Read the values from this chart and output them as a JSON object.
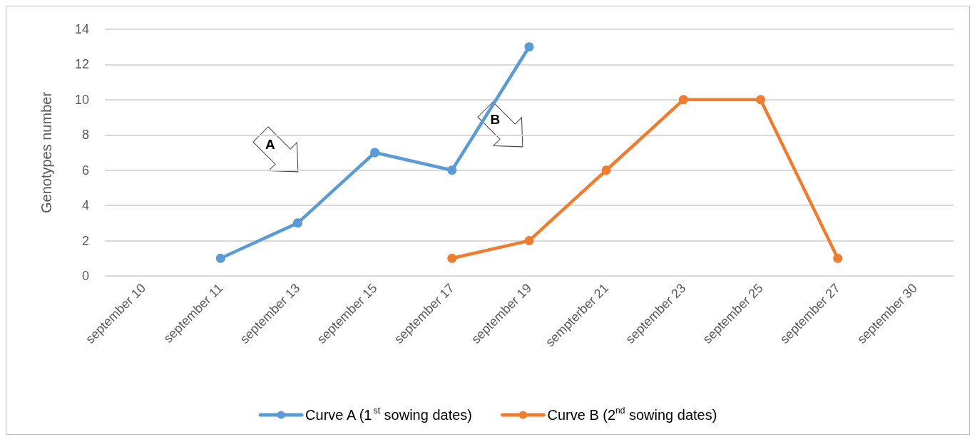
{
  "chart_data": {
    "type": "line",
    "ylabel": "Genotypes number",
    "categories": [
      "september 10",
      "september 11",
      "september 13",
      "september 15",
      "september 17",
      "september 19",
      "sempterber 21",
      "september 23",
      "september 25",
      "september 27",
      "september 30"
    ],
    "series": [
      {
        "name": "Curve A (1$^{st}$ sowing dates)",
        "color": "#5b9bd5",
        "values": [
          null,
          1,
          3,
          7,
          6,
          13,
          null,
          null,
          null,
          null,
          null
        ]
      },
      {
        "name": "Curve B (2$^{nd}$ sowing dates)",
        "color": "#ed7d31",
        "values": [
          null,
          null,
          null,
          null,
          1,
          2,
          6,
          10,
          10,
          1,
          null
        ]
      }
    ],
    "ylim": [
      0,
      14
    ],
    "yticks": [
      0,
      2,
      4,
      6,
      8,
      10,
      12,
      14
    ],
    "grid": "y",
    "legend": "bottom",
    "marker": "circle",
    "line_style": "solid",
    "annotations": [
      "A",
      "B"
    ]
  }
}
